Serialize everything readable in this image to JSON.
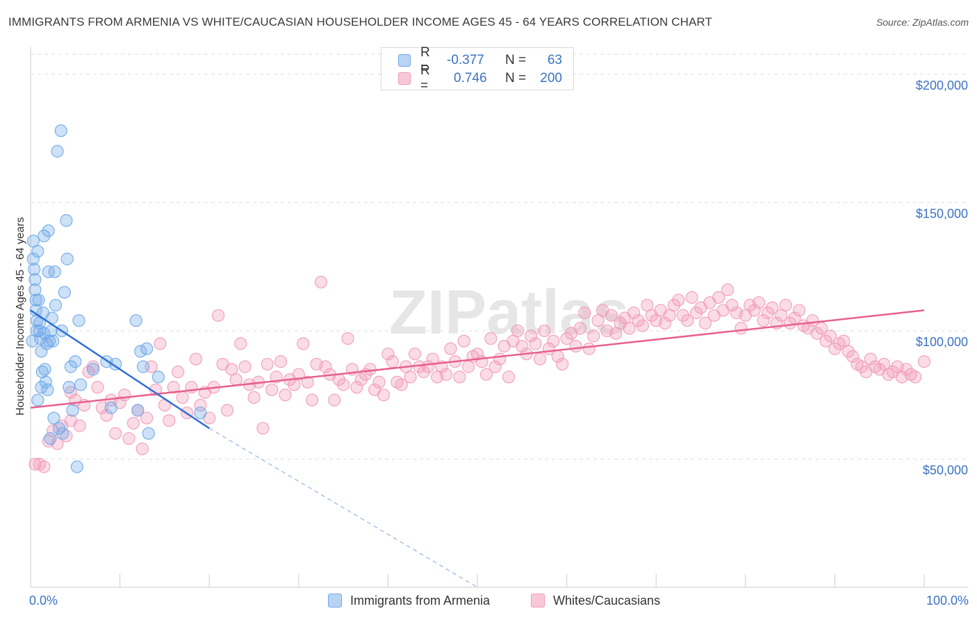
{
  "title": "IMMIGRANTS FROM ARMENIA VS WHITE/CAUCASIAN HOUSEHOLDER INCOME AGES 45 - 64 YEARS CORRELATION CHART",
  "source": "Source: ZipAtlas.com",
  "watermark": "ZIPatlas",
  "colors": {
    "blue": "#6fa8e8",
    "blue_line": "#2f6fd6",
    "pink": "#f19ab8",
    "pink_line": "#e7608d",
    "tick_text": "#3a72c4"
  },
  "legend": {
    "rows": [
      {
        "r_label": "R =",
        "r_value": "-0.377",
        "n_label": "N =",
        "n_value": "63",
        "color": "blue"
      },
      {
        "r_label": "R =",
        "r_value": "0.746",
        "n_label": "N =",
        "n_value": "200",
        "color": "pink"
      }
    ]
  },
  "bottom_legend": {
    "blue": "Immigrants from Armenia",
    "pink": "Whites/Caucasians"
  },
  "chart_data": {
    "type": "scatter",
    "title": "IMMIGRANTS FROM ARMENIA VS WHITE/CAUCASIAN HOUSEHOLDER INCOME AGES 45 - 64 YEARS CORRELATION CHART",
    "xlabel": "",
    "ylabel": "Householder Income Ages 45 - 64 years",
    "xlim": [
      0,
      100
    ],
    "ylim": [
      0,
      210000
    ],
    "x_tick_labels": [
      "0.0%",
      "100.0%"
    ],
    "y_ticks": [
      50000,
      100000,
      150000,
      200000
    ],
    "y_tick_labels": [
      "$50,000",
      "$100,000",
      "$150,000",
      "$200,000"
    ],
    "series": [
      {
        "name": "Immigrants from Armenia",
        "color": "blue",
        "trend": {
          "x1": 0,
          "y1": 108000,
          "x2": 20,
          "y2": 62000,
          "dash_to_x": 50
        },
        "points": [
          [
            0.2,
            96000
          ],
          [
            0.3,
            135000
          ],
          [
            0.3,
            128000
          ],
          [
            0.4,
            124000
          ],
          [
            0.5,
            120000
          ],
          [
            0.5,
            116000
          ],
          [
            0.6,
            112000
          ],
          [
            0.6,
            108000
          ],
          [
            0.7,
            104000
          ],
          [
            0.7,
            100000
          ],
          [
            0.8,
            131000
          ],
          [
            0.9,
            112000
          ],
          [
            1.0,
            103000
          ],
          [
            1.0,
            100000
          ],
          [
            1.1,
            97000
          ],
          [
            1.2,
            92000
          ],
          [
            1.3,
            84000
          ],
          [
            1.4,
            107000
          ],
          [
            1.5,
            137000
          ],
          [
            1.5,
            99000
          ],
          [
            1.6,
            85000
          ],
          [
            1.7,
            80000
          ],
          [
            1.8,
            95000
          ],
          [
            1.9,
            77000
          ],
          [
            2.0,
            139000
          ],
          [
            2.0,
            123000
          ],
          [
            2.1,
            96000
          ],
          [
            2.2,
            58000
          ],
          [
            2.3,
            100000
          ],
          [
            2.4,
            105000
          ],
          [
            2.5,
            96000
          ],
          [
            2.6,
            66000
          ],
          [
            2.7,
            123000
          ],
          [
            2.8,
            110000
          ],
          [
            3.0,
            170000
          ],
          [
            3.2,
            62000
          ],
          [
            3.4,
            178000
          ],
          [
            3.6,
            60000
          ],
          [
            3.8,
            115000
          ],
          [
            4.0,
            143000
          ],
          [
            4.1,
            128000
          ],
          [
            4.3,
            78000
          ],
          [
            4.5,
            86000
          ],
          [
            4.7,
            69000
          ],
          [
            5.0,
            88000
          ],
          [
            5.2,
            47000
          ],
          [
            5.4,
            104000
          ],
          [
            5.6,
            79000
          ],
          [
            7.0,
            85000
          ],
          [
            8.5,
            88000
          ],
          [
            9.0,
            70000
          ],
          [
            9.5,
            87000
          ],
          [
            11.8,
            104000
          ],
          [
            12.0,
            69000
          ],
          [
            12.3,
            92000
          ],
          [
            12.6,
            86000
          ],
          [
            13.0,
            93000
          ],
          [
            13.2,
            60000
          ],
          [
            14.3,
            82000
          ],
          [
            19.0,
            68000
          ],
          [
            0.8,
            73000
          ],
          [
            1.2,
            78000
          ],
          [
            3.5,
            100000
          ]
        ]
      },
      {
        "name": "Whites/Caucasians",
        "color": "pink",
        "trend": {
          "x1": 0,
          "y1": 70000,
          "x2": 100,
          "y2": 108000
        },
        "points": [
          [
            0.5,
            48000
          ],
          [
            1.0,
            48000
          ],
          [
            1.5,
            47000
          ],
          [
            2.0,
            57000
          ],
          [
            2.5,
            61000
          ],
          [
            3.0,
            56000
          ],
          [
            3.5,
            63000
          ],
          [
            4.0,
            59000
          ],
          [
            4.5,
            65000
          ],
          [
            4.5,
            76000
          ],
          [
            5.0,
            73000
          ],
          [
            5.5,
            63000
          ],
          [
            6.0,
            71000
          ],
          [
            6.5,
            84000
          ],
          [
            7.0,
            86000
          ],
          [
            7.5,
            78000
          ],
          [
            8.0,
            70000
          ],
          [
            8.5,
            67000
          ],
          [
            9.0,
            73000
          ],
          [
            9.5,
            60000
          ],
          [
            10.0,
            72000
          ],
          [
            10.5,
            75000
          ],
          [
            11.0,
            58000
          ],
          [
            11.5,
            64000
          ],
          [
            12.0,
            69000
          ],
          [
            12.5,
            54000
          ],
          [
            13.0,
            66000
          ],
          [
            13.5,
            86000
          ],
          [
            14.0,
            77000
          ],
          [
            14.5,
            95000
          ],
          [
            15.0,
            71000
          ],
          [
            15.5,
            65000
          ],
          [
            16.0,
            78000
          ],
          [
            16.5,
            84000
          ],
          [
            17.0,
            74000
          ],
          [
            17.5,
            68000
          ],
          [
            18.0,
            78000
          ],
          [
            18.5,
            89000
          ],
          [
            19.0,
            71000
          ],
          [
            19.5,
            76000
          ],
          [
            20.0,
            66000
          ],
          [
            20.5,
            78000
          ],
          [
            21.0,
            106000
          ],
          [
            21.5,
            87000
          ],
          [
            22.0,
            69000
          ],
          [
            22.5,
            85000
          ],
          [
            23.0,
            81000
          ],
          [
            23.5,
            95000
          ],
          [
            24.0,
            86000
          ],
          [
            24.5,
            79000
          ],
          [
            25.0,
            74000
          ],
          [
            25.5,
            80000
          ],
          [
            26.0,
            62000
          ],
          [
            26.5,
            87000
          ],
          [
            27.0,
            77000
          ],
          [
            27.5,
            82000
          ],
          [
            28.0,
            88000
          ],
          [
            28.5,
            75000
          ],
          [
            29.0,
            81000
          ],
          [
            29.5,
            79000
          ],
          [
            30.0,
            83000
          ],
          [
            30.5,
            95000
          ],
          [
            31.0,
            80000
          ],
          [
            31.5,
            73000
          ],
          [
            32.0,
            87000
          ],
          [
            32.5,
            119000
          ],
          [
            33.0,
            86000
          ],
          [
            33.5,
            83000
          ],
          [
            34.0,
            73000
          ],
          [
            34.5,
            81000
          ],
          [
            35.0,
            79000
          ],
          [
            35.5,
            97000
          ],
          [
            36.0,
            85000
          ],
          [
            36.5,
            78000
          ],
          [
            37.0,
            81000
          ],
          [
            37.5,
            83000
          ],
          [
            38.0,
            85000
          ],
          [
            38.5,
            77000
          ],
          [
            39.0,
            80000
          ],
          [
            39.5,
            75000
          ],
          [
            40.0,
            91000
          ],
          [
            40.5,
            88000
          ],
          [
            41.0,
            80000
          ],
          [
            41.5,
            79000
          ],
          [
            42.0,
            86000
          ],
          [
            42.5,
            82000
          ],
          [
            43.0,
            91000
          ],
          [
            43.5,
            86000
          ],
          [
            44.0,
            84000
          ],
          [
            44.5,
            86000
          ],
          [
            45.0,
            89000
          ],
          [
            45.5,
            82000
          ],
          [
            46.0,
            86000
          ],
          [
            46.5,
            83000
          ],
          [
            47.0,
            93000
          ],
          [
            47.5,
            88000
          ],
          [
            48.0,
            82000
          ],
          [
            48.5,
            96000
          ],
          [
            49.0,
            86000
          ],
          [
            49.5,
            90000
          ],
          [
            50.0,
            91000
          ],
          [
            50.5,
            88000
          ],
          [
            51.0,
            83000
          ],
          [
            51.5,
            97000
          ],
          [
            52.0,
            86000
          ],
          [
            52.5,
            89000
          ],
          [
            53.0,
            94000
          ],
          [
            53.5,
            82000
          ],
          [
            54.0,
            96000
          ],
          [
            54.5,
            100000
          ],
          [
            55.0,
            94000
          ],
          [
            55.5,
            91000
          ],
          [
            56.0,
            98000
          ],
          [
            56.5,
            95000
          ],
          [
            57.0,
            89000
          ],
          [
            57.5,
            100000
          ],
          [
            58.0,
            93000
          ],
          [
            58.5,
            96000
          ],
          [
            59.0,
            90000
          ],
          [
            59.5,
            87000
          ],
          [
            60.0,
            97000
          ],
          [
            60.5,
            99000
          ],
          [
            61.0,
            94000
          ],
          [
            61.5,
            101000
          ],
          [
            62.0,
            107000
          ],
          [
            62.5,
            93000
          ],
          [
            63.0,
            98000
          ],
          [
            63.5,
            104000
          ],
          [
            64.0,
            108000
          ],
          [
            64.5,
            100000
          ],
          [
            65.0,
            106000
          ],
          [
            65.5,
            99000
          ],
          [
            66.0,
            103000
          ],
          [
            66.5,
            105000
          ],
          [
            67.0,
            101000
          ],
          [
            67.5,
            107000
          ],
          [
            68.0,
            104000
          ],
          [
            68.5,
            102000
          ],
          [
            69.0,
            110000
          ],
          [
            69.5,
            106000
          ],
          [
            70.0,
            104000
          ],
          [
            70.5,
            108000
          ],
          [
            71.0,
            103000
          ],
          [
            71.5,
            106000
          ],
          [
            72.0,
            110000
          ],
          [
            72.5,
            112000
          ],
          [
            73.0,
            106000
          ],
          [
            73.5,
            104000
          ],
          [
            74.0,
            113000
          ],
          [
            74.5,
            107000
          ],
          [
            75.0,
            109000
          ],
          [
            75.5,
            103000
          ],
          [
            76.0,
            111000
          ],
          [
            76.5,
            106000
          ],
          [
            77.0,
            113000
          ],
          [
            77.5,
            108000
          ],
          [
            78.0,
            116000
          ],
          [
            78.5,
            110000
          ],
          [
            79.0,
            107000
          ],
          [
            79.5,
            101000
          ],
          [
            80.0,
            106000
          ],
          [
            80.5,
            110000
          ],
          [
            81.0,
            108000
          ],
          [
            81.5,
            111000
          ],
          [
            82.0,
            104000
          ],
          [
            82.5,
            107000
          ],
          [
            83.0,
            109000
          ],
          [
            83.5,
            103000
          ],
          [
            84.0,
            106000
          ],
          [
            84.5,
            110000
          ],
          [
            85.0,
            103000
          ],
          [
            85.5,
            105000
          ],
          [
            86.0,
            108000
          ],
          [
            86.5,
            102000
          ],
          [
            87.0,
            101000
          ],
          [
            87.5,
            104000
          ],
          [
            88.0,
            99000
          ],
          [
            88.5,
            101000
          ],
          [
            89.0,
            96000
          ],
          [
            89.5,
            98000
          ],
          [
            90.0,
            93000
          ],
          [
            90.5,
            95000
          ],
          [
            91.0,
            96000
          ],
          [
            91.5,
            92000
          ],
          [
            92.0,
            90000
          ],
          [
            92.5,
            87000
          ],
          [
            93.0,
            86000
          ],
          [
            93.5,
            84000
          ],
          [
            94.0,
            89000
          ],
          [
            94.5,
            86000
          ],
          [
            95.0,
            85000
          ],
          [
            95.5,
            87000
          ],
          [
            96.0,
            83000
          ],
          [
            96.5,
            84000
          ],
          [
            97.0,
            86000
          ],
          [
            97.5,
            82000
          ],
          [
            98.0,
            85000
          ],
          [
            98.5,
            83000
          ],
          [
            99.0,
            82000
          ],
          [
            100.0,
            88000
          ]
        ]
      }
    ]
  }
}
